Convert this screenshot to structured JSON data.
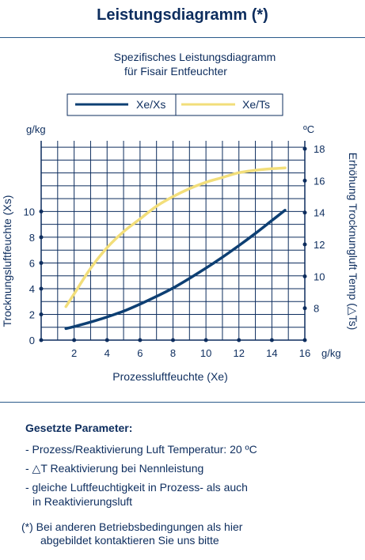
{
  "page": {
    "title": "Leistungsdiagramm (*)"
  },
  "chart_data": {
    "type": "line",
    "title_lines": [
      "Spezifisches Leistungsdiagramm",
      "für Fisair Entfeuchter"
    ],
    "xlabel": "Prozessluftfeuchte (Xe)",
    "x_unit": "g/kg",
    "ylabel_left": "Trocknungsluftfeuchte (Xs)",
    "y_left_unit": "g/kg",
    "ylabel_right": "Erhöhung Trocknungluft Temp (△Ts)",
    "y_right_unit": "ºC",
    "xlim": [
      0,
      16
    ],
    "ylim_left": [
      0,
      15.5
    ],
    "ylim_right": [
      6,
      18.5
    ],
    "x_ticks": [
      "2",
      "4",
      "6",
      "8",
      "10",
      "12",
      "14",
      "16"
    ],
    "y_left_ticks": [
      "0",
      "2",
      "4",
      "6",
      "8",
      "10"
    ],
    "y_right_ticks": [
      "8",
      "10",
      "12",
      "14",
      "16",
      "18"
    ],
    "grid": true,
    "legend_position": "top-center",
    "series": [
      {
        "name": "Xe/Xs",
        "axis": "left",
        "color": "#0d3f73",
        "x": [
          1.5,
          2,
          3,
          4,
          5,
          6,
          7,
          8,
          9,
          10,
          11,
          12,
          13,
          14,
          14.8
        ],
        "y": [
          0.9,
          1.05,
          1.4,
          1.8,
          2.25,
          2.8,
          3.4,
          4.05,
          4.8,
          5.6,
          6.45,
          7.35,
          8.3,
          9.3,
          10.1
        ]
      },
      {
        "name": "Xe/Ts",
        "axis": "right",
        "color": "#f2de7a",
        "x": [
          1.5,
          2,
          3,
          4,
          5,
          6,
          7,
          8,
          9,
          10,
          11,
          12,
          13,
          14,
          14.8
        ],
        "y": [
          8.1,
          8.9,
          10.5,
          11.8,
          12.8,
          13.6,
          14.4,
          15.0,
          15.5,
          15.9,
          16.2,
          16.5,
          16.65,
          16.75,
          16.8
        ]
      }
    ]
  },
  "parameters": {
    "heading": "Gesetzte Parameter:",
    "items": [
      {
        "line1": "- Prozess/Reaktivierung Luft Temperatur: 20 ºC",
        "line2": ""
      },
      {
        "line1": "- △T Reaktivierung bei Nennleistung",
        "line2": ""
      },
      {
        "line1": "- gleiche Luftfeuchtigkeit in Prozess- als auch",
        "line2": "in Reaktivierungsluft"
      }
    ]
  },
  "footnote": {
    "line1": "(*) Bei anderen Betriebsbedingungen als hier",
    "line2": "abgebildet kontaktieren Sie uns bitte"
  }
}
